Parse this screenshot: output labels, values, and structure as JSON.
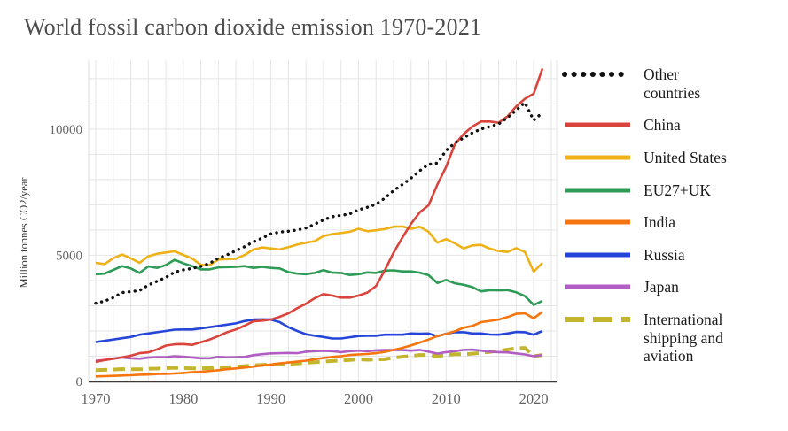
{
  "chart_data": {
    "type": "line",
    "title": "World fossil carbon dioxide emission 1970-2021",
    "xlabel": "",
    "ylabel": "Million tonnes CO2/year",
    "x_range": [
      1970,
      2021
    ],
    "y_range": [
      0,
      12800
    ],
    "x_ticks": [
      1970,
      1980,
      1990,
      2000,
      2010,
      2020
    ],
    "y_ticks": [
      0,
      5000,
      10000
    ],
    "grid": {
      "x_step": 2,
      "y_step": 1000
    },
    "legend_position": "right",
    "x": [
      1970,
      1971,
      1972,
      1973,
      1974,
      1975,
      1976,
      1977,
      1978,
      1979,
      1980,
      1981,
      1982,
      1983,
      1984,
      1985,
      1986,
      1987,
      1988,
      1989,
      1990,
      1991,
      1992,
      1993,
      1994,
      1995,
      1996,
      1997,
      1998,
      1999,
      2000,
      2001,
      2002,
      2003,
      2004,
      2005,
      2006,
      2007,
      2008,
      2009,
      2010,
      2011,
      2012,
      2013,
      2014,
      2015,
      2016,
      2017,
      2018,
      2019,
      2020,
      2021
    ],
    "series": [
      {
        "name": "Other countries",
        "color": "#111111",
        "style": "dotted",
        "values": [
          3100,
          3180,
          3320,
          3520,
          3560,
          3600,
          3820,
          3970,
          4120,
          4330,
          4420,
          4480,
          4560,
          4680,
          4880,
          5020,
          5180,
          5340,
          5530,
          5680,
          5850,
          5920,
          5950,
          6000,
          6080,
          6230,
          6400,
          6530,
          6580,
          6640,
          6800,
          6900,
          7020,
          7260,
          7560,
          7800,
          8060,
          8350,
          8600,
          8650,
          9150,
          9450,
          9650,
          9850,
          10000,
          10100,
          10200,
          10450,
          10750,
          11050,
          10350,
          10650
        ]
      },
      {
        "name": "China",
        "color": "#d9453c",
        "style": "solid",
        "values": [
          780,
          850,
          900,
          950,
          1020,
          1120,
          1150,
          1270,
          1420,
          1470,
          1480,
          1450,
          1550,
          1660,
          1800,
          1950,
          2060,
          2210,
          2380,
          2410,
          2450,
          2560,
          2700,
          2900,
          3080,
          3300,
          3460,
          3400,
          3320,
          3320,
          3400,
          3520,
          3780,
          4400,
          5100,
          5700,
          6250,
          6700,
          6980,
          7800,
          8500,
          9400,
          9800,
          10100,
          10300,
          10300,
          10250,
          10500,
          10900,
          11200,
          11400,
          12400
        ]
      },
      {
        "name": "United States",
        "color": "#eeb117",
        "style": "solid",
        "values": [
          4700,
          4650,
          4880,
          5030,
          4880,
          4700,
          4960,
          5060,
          5110,
          5160,
          5010,
          4870,
          4620,
          4610,
          4830,
          4850,
          4860,
          5010,
          5230,
          5310,
          5270,
          5230,
          5320,
          5420,
          5500,
          5560,
          5760,
          5840,
          5880,
          5930,
          6050,
          5950,
          5990,
          6040,
          6130,
          6140,
          6050,
          6130,
          5930,
          5500,
          5640,
          5470,
          5270,
          5390,
          5410,
          5260,
          5170,
          5130,
          5280,
          5130,
          4350,
          4700
        ]
      },
      {
        "name": "EU27+UK",
        "color": "#2e9b57",
        "style": "solid",
        "values": [
          4250,
          4270,
          4420,
          4570,
          4480,
          4300,
          4560,
          4500,
          4610,
          4820,
          4680,
          4570,
          4440,
          4440,
          4520,
          4530,
          4540,
          4570,
          4500,
          4540,
          4500,
          4480,
          4330,
          4270,
          4250,
          4300,
          4410,
          4310,
          4300,
          4220,
          4250,
          4320,
          4300,
          4390,
          4400,
          4360,
          4360,
          4310,
          4210,
          3900,
          4020,
          3890,
          3830,
          3740,
          3570,
          3620,
          3610,
          3620,
          3530,
          3380,
          3030,
          3190
        ]
      },
      {
        "name": "India",
        "color": "#f6750f",
        "style": "solid",
        "values": [
          200,
          210,
          220,
          235,
          245,
          265,
          275,
          295,
          300,
          315,
          335,
          365,
          385,
          415,
          445,
          485,
          515,
          550,
          590,
          635,
          670,
          715,
          750,
          785,
          825,
          885,
          930,
          970,
          1000,
          1050,
          1070,
          1090,
          1120,
          1170,
          1250,
          1330,
          1430,
          1540,
          1660,
          1800,
          1880,
          1990,
          2130,
          2200,
          2350,
          2400,
          2450,
          2550,
          2680,
          2700,
          2500,
          2760
        ]
      },
      {
        "name": "Russia",
        "color": "#2545d9",
        "style": "solid",
        "values": [
          1560,
          1610,
          1660,
          1710,
          1760,
          1850,
          1900,
          1950,
          2000,
          2050,
          2060,
          2060,
          2100,
          2150,
          2200,
          2250,
          2300,
          2390,
          2450,
          2460,
          2450,
          2350,
          2150,
          2000,
          1870,
          1810,
          1760,
          1700,
          1700,
          1750,
          1800,
          1810,
          1810,
          1850,
          1850,
          1850,
          1900,
          1890,
          1900,
          1790,
          1890,
          1950,
          1950,
          1900,
          1900,
          1860,
          1850,
          1900,
          1960,
          1950,
          1850,
          2000
        ]
      },
      {
        "name": "Japan",
        "color": "#b05ec3",
        "style": "solid",
        "values": [
          820,
          850,
          900,
          950,
          920,
          900,
          945,
          965,
          965,
          1000,
          980,
          950,
          920,
          920,
          970,
          955,
          960,
          970,
          1040,
          1080,
          1110,
          1120,
          1130,
          1120,
          1180,
          1200,
          1210,
          1200,
          1160,
          1200,
          1220,
          1200,
          1230,
          1240,
          1240,
          1240,
          1220,
          1250,
          1180,
          1100,
          1160,
          1200,
          1250,
          1260,
          1220,
          1180,
          1160,
          1150,
          1110,
          1070,
          1000,
          1050
        ]
      },
      {
        "name": "International shipping and aviation",
        "color": "#c3b52e",
        "style": "dashed",
        "values": [
          450,
          460,
          470,
          490,
          480,
          480,
          500,
          510,
          530,
          540,
          530,
          520,
          520,
          530,
          550,
          560,
          590,
          610,
          640,
          660,
          670,
          670,
          700,
          710,
          740,
          760,
          790,
          810,
          830,
          850,
          880,
          860,
          870,
          880,
          940,
          980,
          1010,
          1050,
          1050,
          1000,
          1050,
          1080,
          1080,
          1100,
          1130,
          1170,
          1210,
          1260,
          1310,
          1330,
          1000,
          1050
        ]
      }
    ]
  }
}
